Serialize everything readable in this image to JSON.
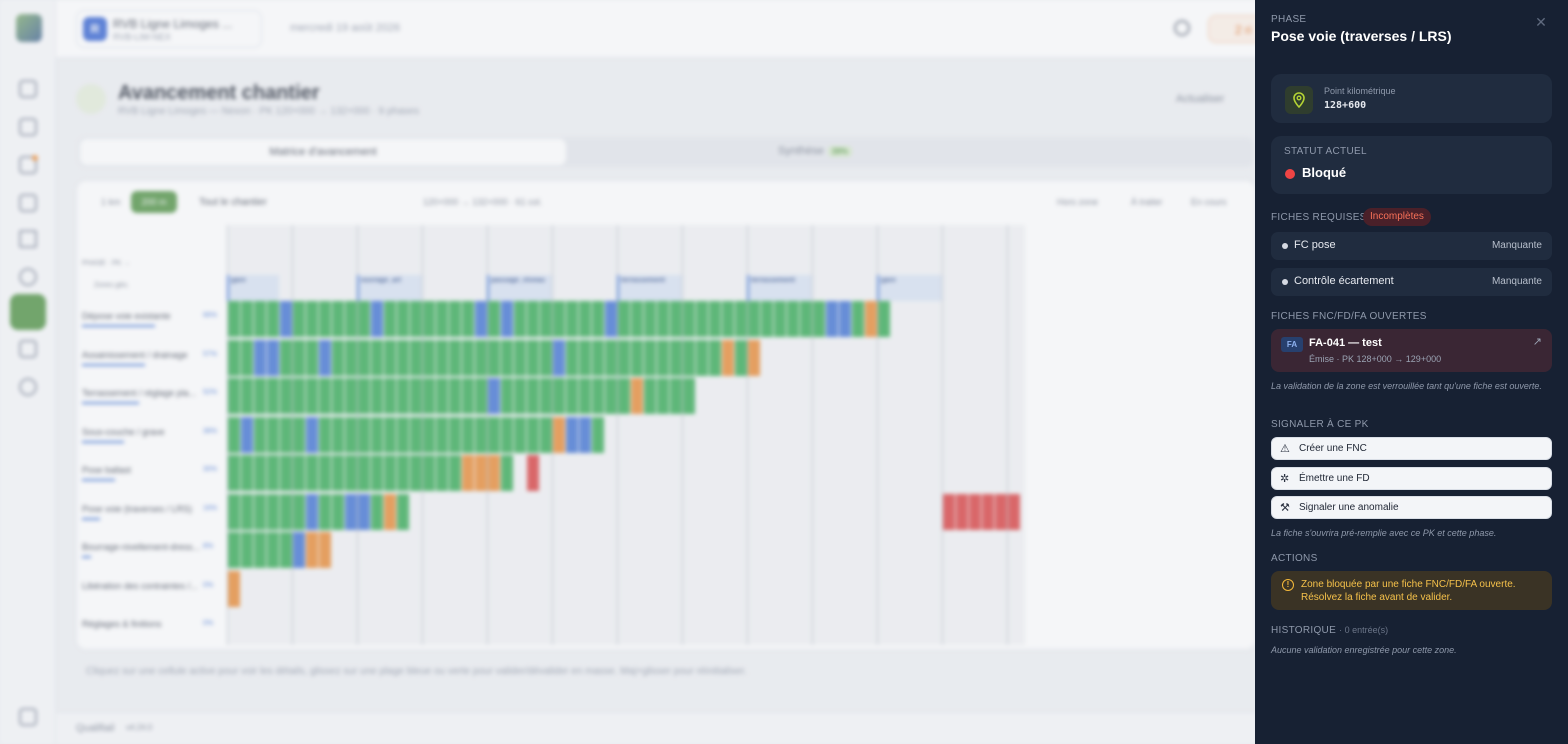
{
  "background": {
    "project_name": "RVB Ligne Limoges ...",
    "project_code": "RVB-LIM-NEX",
    "project_initial": "R",
    "date": "mercredi 19 août 2026",
    "alerts": "2 ri",
    "page_title": "Avancement chantier",
    "page_subtitle": "RVB Ligne Limoges — Nexon · PK 120+000 → 132+000 · 9 phases",
    "refresh_label": "Actualiser",
    "tabs": [
      {
        "label": "Matrice d'avancement"
      },
      {
        "label": "Synthèse",
        "badge": "39%"
      }
    ],
    "toolbar": {
      "opt_1km": "1 km",
      "opt_200m": "200 m",
      "scope": "Tout le chantier",
      "range": "120+000 → 132+000 · 61 col.",
      "legend": [
        "Hors zone",
        "À traiter",
        "En cours"
      ]
    },
    "matrix": {
      "header_label": "PHASE · PK →",
      "zones_label": "Zones géo.",
      "zones": [
        {
          "name": "gare",
          "sub": "Gare de Nexouard"
        },
        {
          "name": "ouvrage_art",
          "sub": "Viaduc de St Vidéo"
        },
        {
          "name": "passage_niveau",
          "sub": "PN 42 — Route de Nexon"
        },
        {
          "name": "terrassement",
          "sub": "Tranchée de Ballignac"
        },
        {
          "name": "terrassement",
          "sub": "Remblai de Pierre-Buffière"
        },
        {
          "name": "gare",
          "sub": "Halte de Meignac"
        }
      ],
      "rows": [
        {
          "label": "Dépose voie existante",
          "pct": "66%"
        },
        {
          "label": "Assainissement / drainage",
          "pct": "57%"
        },
        {
          "label": "Terrassement / réglage pla...",
          "pct": "52%"
        },
        {
          "label": "Sous-couche / grave",
          "pct": "38%"
        },
        {
          "label": "Pose ballast",
          "pct": "30%"
        },
        {
          "label": "Pose voie (traverses / LRS)",
          "pct": "16%"
        },
        {
          "label": "Bourrage-nivellement-dress...",
          "pct": "8%"
        },
        {
          "label": "Libération des contraintes /...",
          "pct": "0%"
        },
        {
          "label": "Réglages & finitions",
          "pct": "0%"
        }
      ]
    },
    "hint": "Cliquez sur une cellule active pour voir les détails, glissez sur une plage bleue ou verte pour valider/dévalider en masse. Maj+glisser pour réinitialiser.",
    "footer_brand": "Qualifiail",
    "footer_version": "v4.24.0"
  },
  "panel": {
    "eyebrow": "PHASE",
    "title": "Pose voie (traverses / LRS)",
    "close_icon": "close-icon",
    "pk_label": "Point kilométrique",
    "pk_value": "128+600",
    "status_label": "STATUT ACTUEL",
    "status_value": "Bloqué",
    "status_color": "#ef4444",
    "required_title": "FICHES REQUISES",
    "required_badge": "Incomplètes",
    "required": [
      {
        "name": "FC pose",
        "state": "Manquante"
      },
      {
        "name": "Contrôle écartement",
        "state": "Manquante"
      }
    ],
    "open_title": "FICHES FNC/FD/FA OUVERTES",
    "open_fiche": {
      "badge": "FA",
      "title": "FA-041 — test",
      "sub": "Émise · PK 128+000 → 129+000"
    },
    "lock_note": "La validation de la zone est verrouillée tant qu'une fiche est ouverte.",
    "signal_title": "SIGNALER À CE PK",
    "buttons": [
      {
        "label": "Créer une FNC",
        "icon": "warning-triangle-icon"
      },
      {
        "label": "Émettre une FD",
        "icon": "bug-icon"
      },
      {
        "label": "Signaler une anomalie",
        "icon": "wrench-icon"
      }
    ],
    "prefill_note": "La fiche s'ouvrira pré-remplie avec ce PK et cette phase.",
    "actions_title": "ACTIONS",
    "warning": "Zone bloquée par une fiche FNC/FD/FA ouverte. Résolvez la fiche avant de valider.",
    "history_title": "HISTORIQUE",
    "history_count": "· 0 entrée(s)",
    "history_empty": "Aucune validation enregistrée pour cette zone."
  },
  "colors": {
    "done": "#2fa84f",
    "in_progress": "#e8872e",
    "to_process": "#3b6fd1",
    "blocked": "#d93a3a",
    "accent": "#4a8f3d"
  }
}
